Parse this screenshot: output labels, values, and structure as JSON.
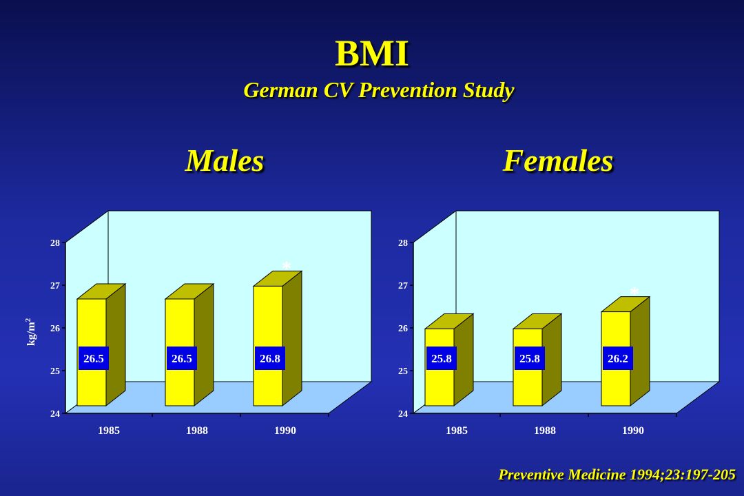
{
  "slide": {
    "title": "BMI",
    "subtitle": "German CV Prevention Study",
    "citation": "Preventive Medicine 1994;23:197-205"
  },
  "colors": {
    "bar_front": "#ffff00",
    "bar_side": "#7f7f00",
    "bar_top": "#bfbf00",
    "label_box": "#0000e6",
    "back_wall": "#ccffff",
    "floor": "#99ccff"
  },
  "chart_data": [
    {
      "type": "bar",
      "title": "Males",
      "categories": [
        "1985",
        "1988",
        "1990"
      ],
      "values": [
        26.5,
        26.5,
        26.8
      ],
      "data_labels": [
        "26.5",
        "26.5",
        "26.8"
      ],
      "annotations": [
        "",
        "",
        "*"
      ],
      "ylabel_base": "kg/m",
      "ylabel_sup": "2",
      "ylim": [
        24,
        28
      ],
      "yticks": [
        "24",
        "25",
        "26",
        "27",
        "28"
      ],
      "grid": false
    },
    {
      "type": "bar",
      "title": "Females",
      "categories": [
        "1985",
        "1988",
        "1990"
      ],
      "values": [
        25.8,
        25.8,
        26.2
      ],
      "data_labels": [
        "25.8",
        "25.8",
        "26.2"
      ],
      "annotations": [
        "",
        "",
        "*"
      ],
      "ylabel_base": "",
      "ylabel_sup": "",
      "ylim": [
        24,
        28
      ],
      "yticks": [
        "24",
        "25",
        "26",
        "27",
        "28"
      ],
      "grid": false
    }
  ]
}
